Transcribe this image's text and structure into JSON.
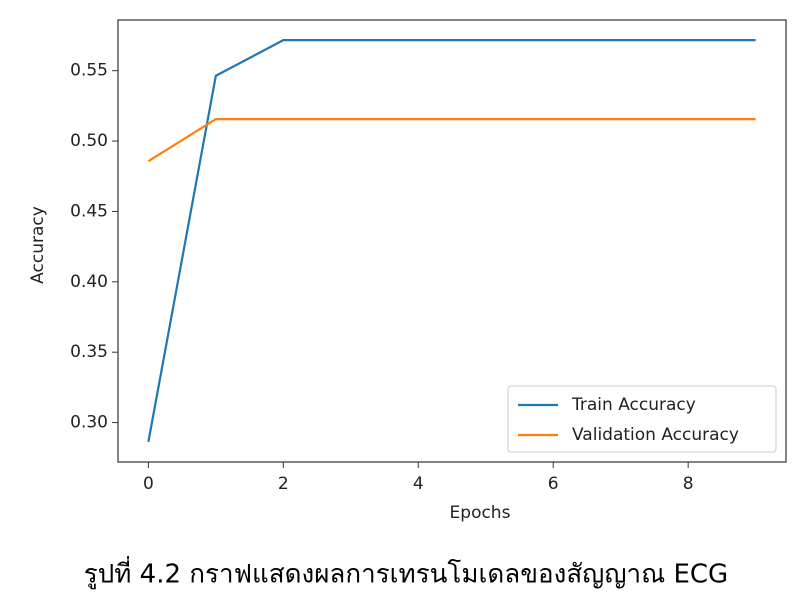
{
  "chart_data": {
    "type": "line",
    "x": [
      0,
      1,
      2,
      3,
      4,
      5,
      6,
      7,
      8,
      9
    ],
    "series": [
      {
        "name": "Train Accuracy",
        "color": "#1f77b4",
        "values": [
          0.2863,
          0.5464,
          0.5717,
          0.5717,
          0.5717,
          0.5717,
          0.5717,
          0.5717,
          0.5717,
          0.5717
        ]
      },
      {
        "name": "Validation Accuracy",
        "color": "#ff7f0e",
        "values": [
          0.4857,
          0.5156,
          0.5156,
          0.5156,
          0.5156,
          0.5156,
          0.5156,
          0.5156,
          0.5156,
          0.5156
        ]
      }
    ],
    "xlabel": "Epochs",
    "ylabel": "Accuracy",
    "xlim": [
      -0.45,
      9.45
    ],
    "xticks": [
      0,
      2,
      4,
      6,
      8
    ],
    "ylim": [
      0.272,
      0.586
    ],
    "yticks": [
      {
        "value": 0.3,
        "label": "0.30"
      },
      0.35,
      {
        "value": 0.4,
        "label": "0.40"
      },
      0.45,
      {
        "value": 0.5,
        "label": "0.50"
      },
      0.55
    ],
    "legend": "lower right",
    "caption": "รูปที่ 4.2  กราฟแสดงผลการเทรนโมเดลของสัญญาณ ECG"
  }
}
